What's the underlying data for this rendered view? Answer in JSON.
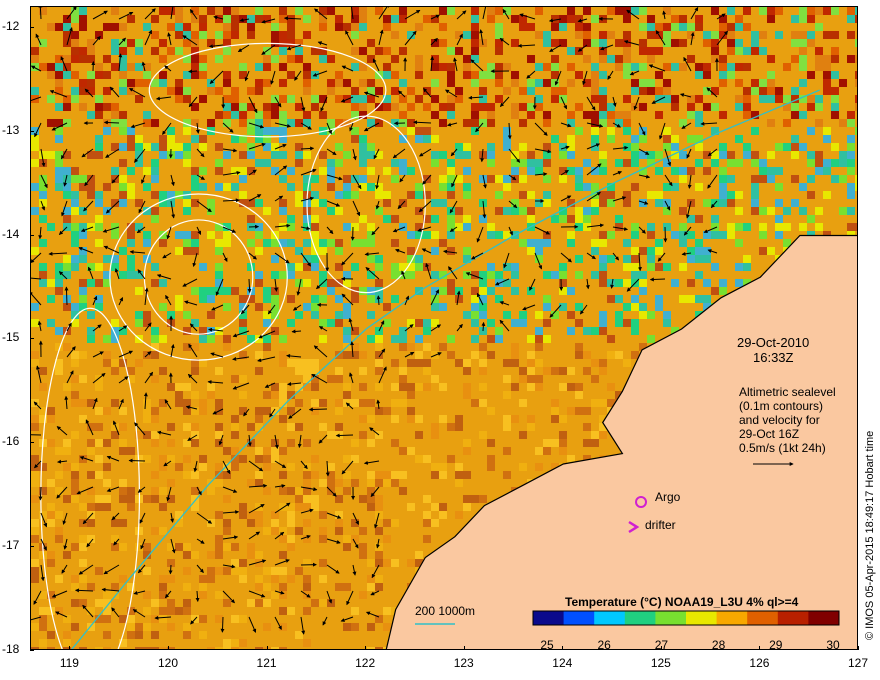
{
  "map": {
    "lat_labels": [
      "-12",
      "-13",
      "-14",
      "-15",
      "-16",
      "-17",
      "-18"
    ],
    "lon_labels": [
      "119",
      "120",
      "121",
      "122",
      "123",
      "124",
      "125",
      "126",
      "127"
    ],
    "lon_range": [
      118.6,
      127
    ],
    "lat_range": [
      -18,
      -11.8
    ],
    "colors": {
      "land": "#fac8a0",
      "coast": "#000000",
      "isobath": "#30c0c8",
      "sealevel_contour": "#ffffff",
      "marker_argo": "#d020d0",
      "marker_drifter": "#d020d0"
    }
  },
  "annotations": {
    "date": "29-Oct-2010",
    "time": "16:33Z",
    "legend_line1": "Altimetric sealevel",
    "legend_line2": "(0.1m contours)",
    "legend_line3": "and velocity for",
    "legend_line4": "29-Oct 16Z",
    "legend_line5": "0.5m/s (1kt 24h)",
    "argo_label": "Argo",
    "drifter_label": "drifter",
    "isobath_label": "200  1000m"
  },
  "colorbar": {
    "title": "Temperature (°C) NOAA19_L3U 4% ql>=4",
    "ticks": [
      "25",
      "26",
      "27",
      "28",
      "29",
      "30"
    ],
    "colors": [
      "#0a0a8c",
      "#0050ff",
      "#00c8ff",
      "#20d080",
      "#78e030",
      "#e8e800",
      "#f8a800",
      "#e06000",
      "#b82000",
      "#800000"
    ]
  },
  "credit": "© IMOS 05-Apr-2015 18:49:17 Hobart time"
}
